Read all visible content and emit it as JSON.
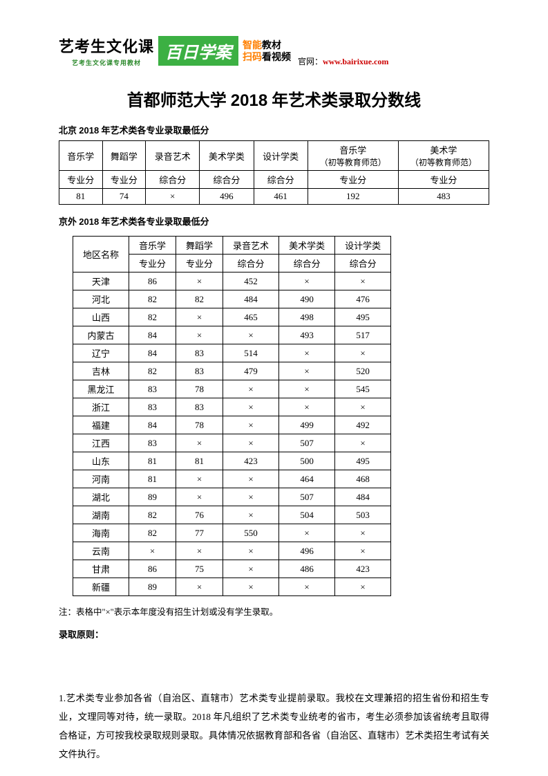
{
  "banner": {
    "title1": "艺考生文化课",
    "sub": "艺考生文化课专用教材",
    "greenBox": "百日学案",
    "right1a": "智能",
    "right1b": "教材",
    "right2a": "扫码",
    "right2b": "看视频",
    "officialLabel": "官网：",
    "officialUrl": "www.bairixue.com"
  },
  "mainTitle": {
    "pre": "首都师范大学 ",
    "year": "2018",
    "post": " 年艺术类录取分数线"
  },
  "section1": {
    "pre": "北京 ",
    "year": "2018",
    "post": " 年艺术类各专业录取最低分"
  },
  "table1": {
    "h1": "音乐学",
    "h2": "舞蹈学",
    "h3": "录音艺术",
    "h4": "美术学类",
    "h5": "设计学类",
    "h6a": "音乐学",
    "h6b": "（初等教育师范）",
    "h7a": "美术学",
    "h7b": "（初等教育师范）",
    "r2c1": "专业分",
    "r2c2": "专业分",
    "r2c3": "综合分",
    "r2c4": "综合分",
    "r2c5": "综合分",
    "r2c6": "专业分",
    "r2c7": "专业分",
    "r3c1": "81",
    "r3c2": "74",
    "r3c3": "×",
    "r3c4": "496",
    "r3c5": "461",
    "r3c6": "192",
    "r3c7": "483"
  },
  "section2": {
    "pre": "京外 ",
    "year": "2018",
    "post": " 年艺术类各专业录取最低分"
  },
  "table2": {
    "header": {
      "region": "地区名称",
      "cols": [
        {
          "top": "音乐学",
          "bot": "专业分"
        },
        {
          "top": "舞蹈学",
          "bot": "专业分"
        },
        {
          "top": "录音艺术",
          "bot": "综合分"
        },
        {
          "top": "美术学类",
          "bot": "综合分"
        },
        {
          "top": "设计学类",
          "bot": "综合分"
        }
      ]
    },
    "rows": [
      {
        "r": "天津",
        "c": [
          "86",
          "×",
          "452",
          "×",
          "×"
        ]
      },
      {
        "r": "河北",
        "c": [
          "82",
          "82",
          "484",
          "490",
          "476"
        ]
      },
      {
        "r": "山西",
        "c": [
          "82",
          "×",
          "465",
          "498",
          "495"
        ]
      },
      {
        "r": "内蒙古",
        "c": [
          "84",
          "×",
          "×",
          "493",
          "517"
        ]
      },
      {
        "r": "辽宁",
        "c": [
          "84",
          "83",
          "514",
          "×",
          "×"
        ]
      },
      {
        "r": "吉林",
        "c": [
          "82",
          "83",
          "479",
          "×",
          "520"
        ]
      },
      {
        "r": "黑龙江",
        "c": [
          "83",
          "78",
          "×",
          "×",
          "545"
        ]
      },
      {
        "r": "浙江",
        "c": [
          "83",
          "83",
          "×",
          "×",
          "×"
        ]
      },
      {
        "r": "福建",
        "c": [
          "84",
          "78",
          "×",
          "499",
          "492"
        ]
      },
      {
        "r": "江西",
        "c": [
          "83",
          "×",
          "×",
          "507",
          "×"
        ]
      },
      {
        "r": "山东",
        "c": [
          "81",
          "81",
          "423",
          "500",
          "495"
        ]
      },
      {
        "r": "河南",
        "c": [
          "81",
          "×",
          "×",
          "464",
          "468"
        ]
      },
      {
        "r": "湖北",
        "c": [
          "89",
          "×",
          "×",
          "507",
          "484"
        ]
      },
      {
        "r": "湖南",
        "c": [
          "82",
          "76",
          "×",
          "504",
          "503"
        ]
      },
      {
        "r": "海南",
        "c": [
          "82",
          "77",
          "550",
          "×",
          "×"
        ]
      },
      {
        "r": "云南",
        "c": [
          "×",
          "×",
          "×",
          "496",
          "×"
        ]
      },
      {
        "r": "甘肃",
        "c": [
          "86",
          "75",
          "×",
          "486",
          "423"
        ]
      },
      {
        "r": "新疆",
        "c": [
          "89",
          "×",
          "×",
          "×",
          "×"
        ]
      }
    ]
  },
  "note": "注：表格中\"×\"表示本年度没有招生计划或没有学生录取。",
  "principleTitle": "录取原则：",
  "bodyText": "1.艺术类专业参加各省（自治区、直辖市）艺术类专业提前录取。我校在文理兼招的招生省份和招生专业，文理同等对待，统一录取。2018 年凡组织了艺术类专业统考的省市，考生必须参加该省统考且取得合格证，方可按我校录取规则录取。具体情况依据教育部和各省（自治区、直辖市）艺术类招生考试有关文件执行。"
}
